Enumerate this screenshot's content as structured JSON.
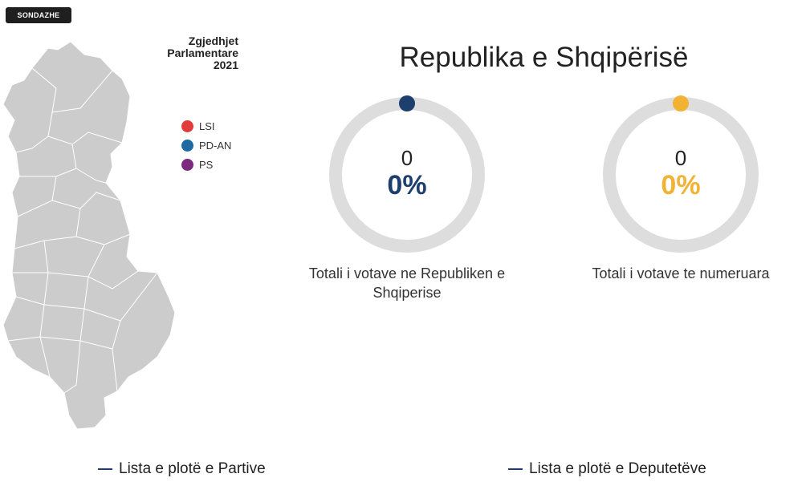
{
  "badge": {
    "label": "SONDAZHE"
  },
  "map": {
    "title_lines": [
      "Zgjedhjet",
      "Parlamentare",
      "2021"
    ],
    "fill_color": "#cccccc",
    "border_color": "#ffffff"
  },
  "legend": {
    "items": [
      {
        "label": "LSI",
        "color": "#e03c3c"
      },
      {
        "label": "PD-AN",
        "color": "#1f6aa5"
      },
      {
        "label": "PS",
        "color": "#7b2a7d"
      }
    ]
  },
  "main": {
    "title": "Republika e Shqipërisë",
    "rings": [
      {
        "count": "0",
        "percent": "0%",
        "value": 0,
        "color": "#1d3f6e",
        "label": "Totali i votave ne Republiken e Shqiperise"
      },
      {
        "count": "0",
        "percent": "0%",
        "value": 0,
        "color": "#f2b233",
        "label": "Totali i votave te numeruara"
      }
    ],
    "ring_track_color": "#dddddd"
  },
  "footer": {
    "parties_link": "Lista e plotë e Partive",
    "deputies_link": "Lista e plotë e Deputetëve",
    "accent_color": "#1d3f6e"
  }
}
